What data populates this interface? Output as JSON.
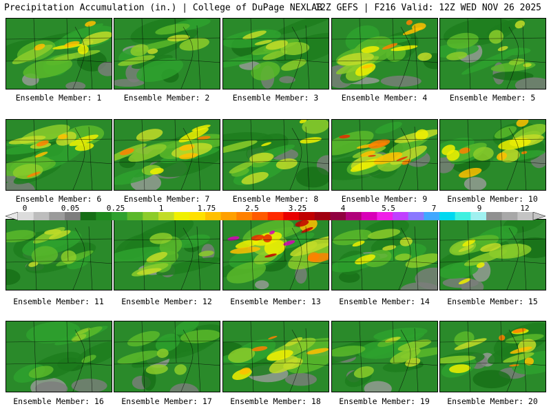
{
  "header": {
    "left": "Precipitation Accumulation (in.) | College of DuPage NEXLAB",
    "right": "12Z GEFS | F216 Valid: 12Z WED NOV 26 2025"
  },
  "panel_label_prefix": "Ensemble Member: ",
  "members": [
    {
      "label": "Ensemble Member: 1",
      "intensity": 0.55
    },
    {
      "label": "Ensemble Member: 2",
      "intensity": 0.35
    },
    {
      "label": "Ensemble Member: 3",
      "intensity": 0.35
    },
    {
      "label": "Ensemble Member: 4",
      "intensity": 0.6
    },
    {
      "label": "Ensemble Member: 5",
      "intensity": 0.35
    },
    {
      "label": "Ensemble Member: 6",
      "intensity": 0.6
    },
    {
      "label": "Ensemble Member: 7",
      "intensity": 0.65
    },
    {
      "label": "Ensemble Member: 8",
      "intensity": 0.45
    },
    {
      "label": "Ensemble Member: 9",
      "intensity": 0.7
    },
    {
      "label": "Ensemble Member: 10",
      "intensity": 0.65
    },
    {
      "label": "Ensemble Member: 11",
      "intensity": 0.4
    },
    {
      "label": "Ensemble Member: 12",
      "intensity": 0.4
    },
    {
      "label": "Ensemble Member: 13",
      "intensity": 0.9
    },
    {
      "label": "Ensemble Member: 14",
      "intensity": 0.45
    },
    {
      "label": "Ensemble Member: 15",
      "intensity": 0.45
    },
    {
      "label": "Ensemble Member: 16",
      "intensity": 0.3
    },
    {
      "label": "Ensemble Member: 17",
      "intensity": 0.3
    },
    {
      "label": "Ensemble Member: 18",
      "intensity": 0.6
    },
    {
      "label": "Ensemble Member: 19",
      "intensity": 0.4
    },
    {
      "label": "Ensemble Member: 20",
      "intensity": 0.6
    }
  ],
  "colorbar": {
    "labels": [
      "0",
      "0.05",
      "0.25",
      "1",
      "1.75",
      "2.5",
      "3.25",
      "4",
      "5.5",
      "7",
      "9",
      "12"
    ],
    "colors": [
      "#dcdcdc",
      "#bdbdbd",
      "#9b9b9b",
      "#7d7d7d",
      "#166e16",
      "#1f8a1f",
      "#2ea12e",
      "#5ab82a",
      "#8ccc2a",
      "#c2dc28",
      "#f0f000",
      "#ffe000",
      "#ffc000",
      "#ffa000",
      "#ff8000",
      "#ff5a00",
      "#ff2a00",
      "#e80000",
      "#c00000",
      "#a00010",
      "#900040",
      "#b0007a",
      "#d800b8",
      "#f020e8",
      "#c040ff",
      "#8a78ff",
      "#40a8ff",
      "#00d8f0",
      "#40f0e0",
      "#a0f0f0",
      "#909090",
      "#a8a8a8",
      "#c4c4c4"
    ]
  }
}
